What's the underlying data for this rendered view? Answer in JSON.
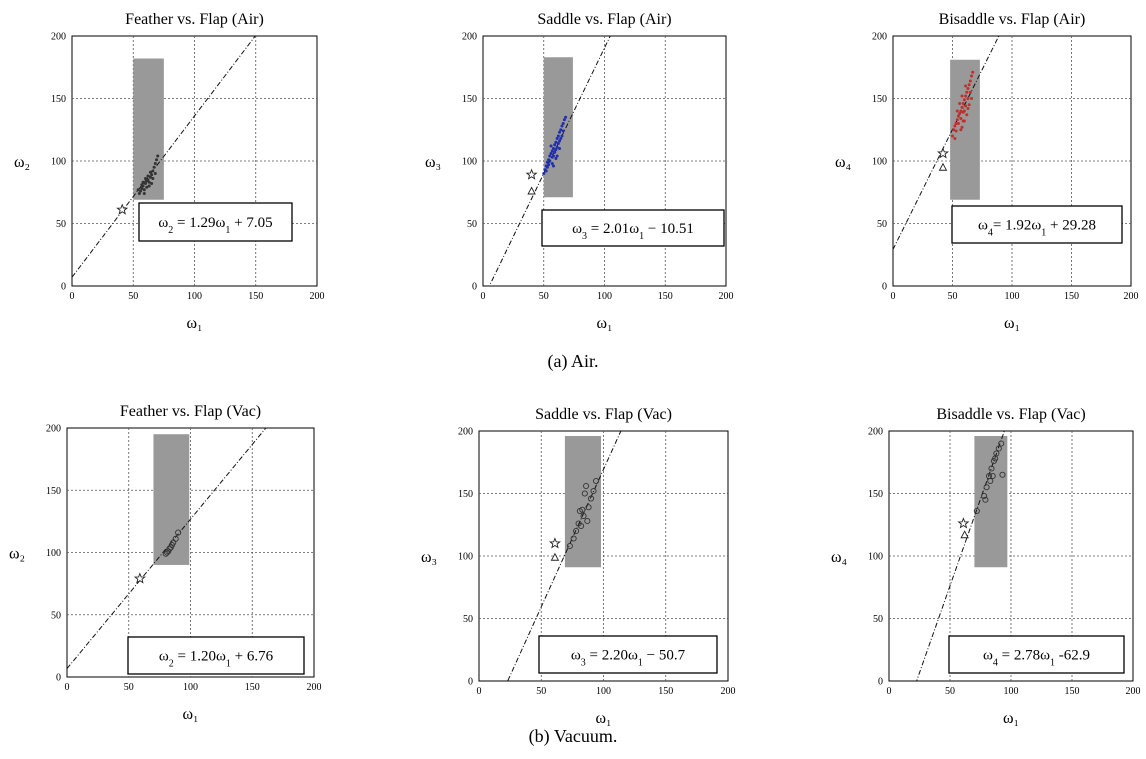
{
  "figure_captions": [
    "(a) Air.",
    "(b) Vacuum."
  ],
  "chart_data": [
    {
      "type": "scatter",
      "title": "Feather vs. Flap (Air)",
      "xlabel": "ω₁",
      "ylabel": "ω₂",
      "xlim": [
        0,
        200
      ],
      "ylim": [
        0,
        200
      ],
      "xticks": [
        "0",
        "50",
        "100",
        "150",
        "200"
      ],
      "yticks": [
        "0",
        "50",
        "100",
        "150",
        "200"
      ],
      "grid": true,
      "point_color": "#333333",
      "marker": "dot",
      "region": {
        "x": [
          50,
          75
        ],
        "y": [
          69,
          182
        ],
        "color": "#999999"
      },
      "fit_line": {
        "slope": 1.29,
        "intercept": 7.05,
        "style": "dash-dot"
      },
      "equation": {
        "lhs": "ω",
        "lsub": "2",
        "mid": " = 1.29ω",
        "msub": "1",
        "rhs": " + 7.05",
        "position": "bottom-right"
      },
      "star": {
        "x": 41,
        "y": 61
      },
      "triangle": null,
      "points": [
        {
          "x": 56,
          "y": 76
        },
        {
          "x": 57,
          "y": 78
        },
        {
          "x": 58,
          "y": 80
        },
        {
          "x": 59,
          "y": 77
        },
        {
          "x": 60,
          "y": 82
        },
        {
          "x": 61,
          "y": 79
        },
        {
          "x": 62,
          "y": 85
        },
        {
          "x": 63,
          "y": 83
        },
        {
          "x": 64,
          "y": 87
        },
        {
          "x": 65,
          "y": 89
        },
        {
          "x": 62,
          "y": 88
        },
        {
          "x": 60,
          "y": 86
        },
        {
          "x": 58,
          "y": 83
        },
        {
          "x": 66,
          "y": 92
        },
        {
          "x": 67,
          "y": 95
        },
        {
          "x": 68,
          "y": 98
        },
        {
          "x": 69,
          "y": 101
        },
        {
          "x": 70,
          "y": 104
        },
        {
          "x": 64,
          "y": 91
        },
        {
          "x": 61,
          "y": 84
        },
        {
          "x": 57,
          "y": 81
        },
        {
          "x": 55,
          "y": 74
        },
        {
          "x": 54,
          "y": 77
        },
        {
          "x": 59,
          "y": 74
        },
        {
          "x": 63,
          "y": 80
        },
        {
          "x": 66,
          "y": 86
        },
        {
          "x": 68,
          "y": 90
        },
        {
          "x": 65,
          "y": 82
        }
      ]
    },
    {
      "type": "scatter",
      "title": "Saddle vs. Flap (Air)",
      "xlabel": "ω₁",
      "ylabel": "ω₃",
      "xlim": [
        0,
        200
      ],
      "ylim": [
        0,
        200
      ],
      "xticks": [
        "0",
        "50",
        "100",
        "150",
        "200"
      ],
      "yticks": [
        "0",
        "50",
        "100",
        "150",
        "200"
      ],
      "grid": true,
      "point_color": "#1f2fb0",
      "marker": "dot",
      "region": {
        "x": [
          50,
          74
        ],
        "y": [
          71,
          183
        ],
        "color": "#999999"
      },
      "fit_line": {
        "slope": 2.01,
        "intercept": -10.51,
        "style": "dash-dot"
      },
      "equation": {
        "lhs": "ω",
        "lsub": "3",
        "mid": " = 2.01ω",
        "msub": "1",
        "rhs": " − 10.51",
        "position": "bottom-right"
      },
      "star": {
        "x": 40,
        "y": 89
      },
      "triangle": {
        "x": 40,
        "y": 76
      },
      "points": [
        {
          "x": 50,
          "y": 90
        },
        {
          "x": 51,
          "y": 93
        },
        {
          "x": 52,
          "y": 96
        },
        {
          "x": 53,
          "y": 99
        },
        {
          "x": 54,
          "y": 101
        },
        {
          "x": 55,
          "y": 104
        },
        {
          "x": 56,
          "y": 106
        },
        {
          "x": 57,
          "y": 108
        },
        {
          "x": 58,
          "y": 110
        },
        {
          "x": 59,
          "y": 113
        },
        {
          "x": 60,
          "y": 115
        },
        {
          "x": 61,
          "y": 118
        },
        {
          "x": 62,
          "y": 120
        },
        {
          "x": 63,
          "y": 123
        },
        {
          "x": 64,
          "y": 125
        },
        {
          "x": 65,
          "y": 128
        },
        {
          "x": 66,
          "y": 130
        },
        {
          "x": 67,
          "y": 133
        },
        {
          "x": 68,
          "y": 135
        },
        {
          "x": 53,
          "y": 95
        },
        {
          "x": 55,
          "y": 100
        },
        {
          "x": 57,
          "y": 103
        },
        {
          "x": 59,
          "y": 107
        },
        {
          "x": 61,
          "y": 111
        },
        {
          "x": 63,
          "y": 116
        },
        {
          "x": 65,
          "y": 120
        },
        {
          "x": 56,
          "y": 112
        },
        {
          "x": 58,
          "y": 104
        },
        {
          "x": 60,
          "y": 109
        },
        {
          "x": 62,
          "y": 114
        },
        {
          "x": 54,
          "y": 97
        },
        {
          "x": 52,
          "y": 92
        },
        {
          "x": 64,
          "y": 118
        },
        {
          "x": 66,
          "y": 124
        },
        {
          "x": 60,
          "y": 102
        },
        {
          "x": 57,
          "y": 98
        },
        {
          "x": 61,
          "y": 104
        },
        {
          "x": 63,
          "y": 110
        },
        {
          "x": 58,
          "y": 96
        }
      ]
    },
    {
      "type": "scatter",
      "title": "Bisaddle vs. Flap (Air)",
      "xlabel": "ω₁",
      "ylabel": "ω₄",
      "xlim": [
        0,
        200
      ],
      "ylim": [
        0,
        200
      ],
      "xticks": [
        "0",
        "50",
        "100",
        "150",
        "200"
      ],
      "yticks": [
        "0",
        "50",
        "100",
        "150",
        "200"
      ],
      "grid": true,
      "point_color": "#c0302a",
      "marker": "dot",
      "region": {
        "x": [
          48,
          73
        ],
        "y": [
          69,
          181
        ],
        "color": "#999999"
      },
      "fit_line": {
        "slope": 1.92,
        "intercept": 29.28,
        "style": "dash-dot"
      },
      "equation": {
        "lhs": "ω",
        "lsub": "4",
        "mid": "= 1.92ω",
        "msub": "1",
        "rhs": " + 29.28",
        "position": "bottom-right"
      },
      "star": {
        "x": 42,
        "y": 106
      },
      "triangle": {
        "x": 42,
        "y": 95
      },
      "points": [
        {
          "x": 50,
          "y": 120
        },
        {
          "x": 51,
          "y": 125
        },
        {
          "x": 52,
          "y": 128
        },
        {
          "x": 53,
          "y": 130
        },
        {
          "x": 54,
          "y": 133
        },
        {
          "x": 55,
          "y": 136
        },
        {
          "x": 56,
          "y": 138
        },
        {
          "x": 57,
          "y": 140
        },
        {
          "x": 58,
          "y": 143
        },
        {
          "x": 59,
          "y": 146
        },
        {
          "x": 60,
          "y": 149
        },
        {
          "x": 61,
          "y": 152
        },
        {
          "x": 62,
          "y": 155
        },
        {
          "x": 63,
          "y": 158
        },
        {
          "x": 64,
          "y": 161
        },
        {
          "x": 65,
          "y": 164
        },
        {
          "x": 66,
          "y": 168
        },
        {
          "x": 67,
          "y": 171
        },
        {
          "x": 53,
          "y": 124
        },
        {
          "x": 55,
          "y": 130
        },
        {
          "x": 57,
          "y": 134
        },
        {
          "x": 59,
          "y": 139
        },
        {
          "x": 61,
          "y": 144
        },
        {
          "x": 63,
          "y": 150
        },
        {
          "x": 58,
          "y": 127
        },
        {
          "x": 60,
          "y": 132
        },
        {
          "x": 62,
          "y": 137
        },
        {
          "x": 64,
          "y": 145
        },
        {
          "x": 56,
          "y": 146
        },
        {
          "x": 54,
          "y": 140
        },
        {
          "x": 52,
          "y": 118
        },
        {
          "x": 60,
          "y": 140
        },
        {
          "x": 65,
          "y": 155
        },
        {
          "x": 63,
          "y": 142
        },
        {
          "x": 58,
          "y": 152
        },
        {
          "x": 61,
          "y": 160
        },
        {
          "x": 57,
          "y": 125
        },
        {
          "x": 66,
          "y": 150
        },
        {
          "x": 59,
          "y": 132
        }
      ]
    },
    {
      "type": "scatter",
      "title": "Feather vs. Flap (Vac)",
      "xlabel": "ω₁",
      "ylabel": "ω₂",
      "xlim": [
        0,
        200
      ],
      "ylim": [
        0,
        200
      ],
      "xticks": [
        "0",
        "50",
        "100",
        "150",
        "200"
      ],
      "yticks": [
        "0",
        "50",
        "100",
        "150",
        "200"
      ],
      "grid": true,
      "point_color": "#333333",
      "marker": "circle",
      "region": {
        "x": [
          70,
          99
        ],
        "y": [
          90,
          195
        ],
        "color": "#999999"
      },
      "fit_line": {
        "slope": 1.2,
        "intercept": 6.76,
        "style": "dash-dot"
      },
      "equation": {
        "lhs": "ω",
        "lsub": "2",
        "mid": " = 1.20ω",
        "msub": "1",
        "rhs": " + 6.76",
        "position": "bottom-right"
      },
      "star": {
        "x": 59,
        "y": 79
      },
      "triangle": null,
      "points": [
        {
          "x": 80,
          "y": 99
        },
        {
          "x": 81,
          "y": 100
        },
        {
          "x": 83,
          "y": 103
        },
        {
          "x": 85,
          "y": 106
        },
        {
          "x": 86,
          "y": 108
        },
        {
          "x": 88,
          "y": 111
        },
        {
          "x": 90,
          "y": 116
        },
        {
          "x": 82,
          "y": 101
        },
        {
          "x": 84,
          "y": 104
        }
      ]
    },
    {
      "type": "scatter",
      "title": "Saddle vs. Flap (Vac)",
      "xlabel": "ω₁",
      "ylabel": "ω₃",
      "xlim": [
        0,
        200
      ],
      "ylim": [
        0,
        200
      ],
      "xticks": [
        "0",
        "50",
        "100",
        "150",
        "200"
      ],
      "yticks": [
        "0",
        "50",
        "100",
        "150",
        "200"
      ],
      "grid": true,
      "point_color": "#333333",
      "marker": "circle",
      "region": {
        "x": [
          69,
          98
        ],
        "y": [
          91,
          196
        ],
        "color": "#999999"
      },
      "fit_line": {
        "slope": 2.2,
        "intercept": -50.7,
        "style": "dash-dot"
      },
      "equation": {
        "lhs": "ω",
        "lsub": "3",
        "mid": " = 2.20ω",
        "msub": "1",
        "rhs": " − 50.7",
        "position": "bottom-right"
      },
      "star": {
        "x": 61,
        "y": 110
      },
      "triangle": {
        "x": 61,
        "y": 99
      },
      "points": [
        {
          "x": 73,
          "y": 108
        },
        {
          "x": 76,
          "y": 114
        },
        {
          "x": 78,
          "y": 120
        },
        {
          "x": 80,
          "y": 126
        },
        {
          "x": 81,
          "y": 136
        },
        {
          "x": 83,
          "y": 137
        },
        {
          "x": 84,
          "y": 132
        },
        {
          "x": 85,
          "y": 150
        },
        {
          "x": 86,
          "y": 156
        },
        {
          "x": 88,
          "y": 139
        },
        {
          "x": 90,
          "y": 146
        },
        {
          "x": 92,
          "y": 152
        },
        {
          "x": 87,
          "y": 128
        },
        {
          "x": 94,
          "y": 160
        },
        {
          "x": 82,
          "y": 124
        }
      ]
    },
    {
      "type": "scatter",
      "title": "Bisaddle vs. Flap (Vac)",
      "xlabel": "ω₁",
      "ylabel": "ω₄",
      "xlim": [
        0,
        200
      ],
      "ylim": [
        0,
        200
      ],
      "xticks": [
        "0",
        "50",
        "100",
        "150",
        "200"
      ],
      "yticks": [
        "0",
        "50",
        "100",
        "150",
        "200"
      ],
      "grid": true,
      "point_color": "#333333",
      "marker": "circle",
      "region": {
        "x": [
          70,
          97
        ],
        "y": [
          91,
          196
        ],
        "color": "#999999"
      },
      "fit_line": {
        "slope": 2.78,
        "intercept": -62.9,
        "style": "dash-dot"
      },
      "equation": {
        "lhs": "ω",
        "lsub": "4",
        "mid": " = 2.78ω",
        "msub": "1",
        "rhs": " -62.9",
        "position": "bottom-right"
      },
      "star": {
        "x": 61,
        "y": 126
      },
      "triangle": {
        "x": 62,
        "y": 117
      },
      "points": [
        {
          "x": 72,
          "y": 136
        },
        {
          "x": 78,
          "y": 148
        },
        {
          "x": 80,
          "y": 155
        },
        {
          "x": 82,
          "y": 164
        },
        {
          "x": 84,
          "y": 170
        },
        {
          "x": 86,
          "y": 176
        },
        {
          "x": 88,
          "y": 182
        },
        {
          "x": 90,
          "y": 186
        },
        {
          "x": 92,
          "y": 190
        },
        {
          "x": 85,
          "y": 164
        },
        {
          "x": 93,
          "y": 165
        },
        {
          "x": 83,
          "y": 160
        },
        {
          "x": 79,
          "y": 145
        },
        {
          "x": 87,
          "y": 178
        }
      ]
    }
  ]
}
